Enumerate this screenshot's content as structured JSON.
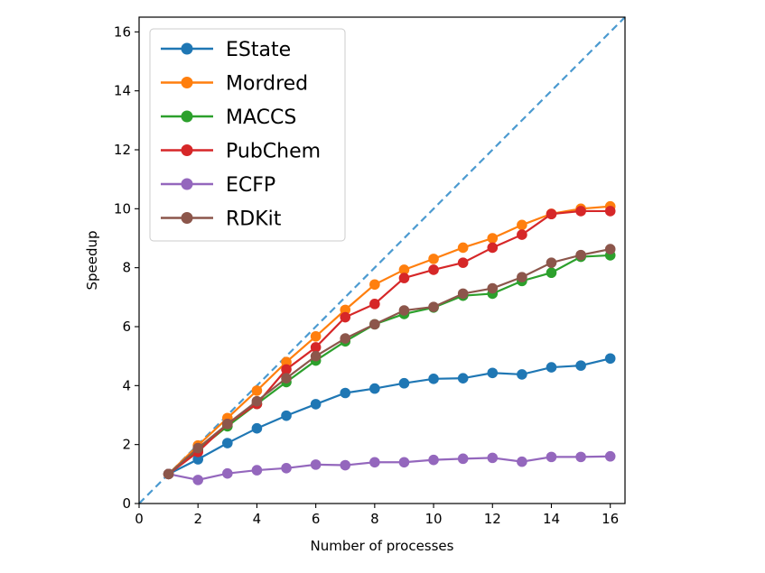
{
  "chart_data": {
    "type": "line",
    "title": "",
    "xlabel": "Number of processes",
    "ylabel": "Speedup",
    "xlim": [
      0,
      16.5
    ],
    "ylim": [
      0,
      16.5
    ],
    "xticks": [
      0,
      2,
      4,
      6,
      8,
      10,
      12,
      14,
      16
    ],
    "yticks": [
      0,
      2,
      4,
      6,
      8,
      10,
      12,
      14,
      16
    ],
    "x": [
      1,
      2,
      3,
      4,
      5,
      6,
      7,
      8,
      9,
      10,
      11,
      12,
      13,
      14,
      15,
      16
    ],
    "legend_position": "top-left",
    "reference_line": {
      "name": "ideal",
      "style": "dashed",
      "color": "#4b9ad0",
      "from": [
        0,
        0
      ],
      "to": [
        16.5,
        16.5
      ]
    },
    "series": [
      {
        "name": "EState",
        "color": "#1f77b4",
        "values": [
          1.0,
          1.5,
          2.05,
          2.55,
          2.98,
          3.37,
          3.75,
          3.9,
          4.08,
          4.23,
          4.25,
          4.43,
          4.38,
          4.62,
          4.68,
          4.92
        ]
      },
      {
        "name": "Mordred",
        "color": "#ff7f0e",
        "values": [
          1.0,
          1.97,
          2.9,
          3.83,
          4.8,
          5.67,
          6.57,
          7.43,
          7.93,
          8.3,
          8.68,
          9.0,
          9.45,
          9.83,
          10.0,
          10.08
        ]
      },
      {
        "name": "MACCS",
        "color": "#2ca02c",
        "values": [
          1.0,
          1.82,
          2.62,
          3.38,
          4.12,
          4.85,
          5.5,
          6.08,
          6.43,
          6.65,
          7.05,
          7.12,
          7.55,
          7.83,
          8.37,
          8.42
        ]
      },
      {
        "name": "PubChem",
        "color": "#d62728",
        "values": [
          1.0,
          1.75,
          2.7,
          3.38,
          4.55,
          5.3,
          6.32,
          6.77,
          7.65,
          7.93,
          8.17,
          8.68,
          9.12,
          9.82,
          9.92,
          9.92
        ]
      },
      {
        "name": "ECFP",
        "color": "#9467bd",
        "values": [
          1.0,
          0.8,
          1.02,
          1.13,
          1.2,
          1.32,
          1.3,
          1.4,
          1.4,
          1.48,
          1.52,
          1.55,
          1.42,
          1.58,
          1.58,
          1.6
        ]
      },
      {
        "name": "RDKit",
        "color": "#8c564b",
        "values": [
          1.0,
          1.88,
          2.7,
          3.47,
          4.25,
          5.0,
          5.6,
          6.08,
          6.55,
          6.67,
          7.12,
          7.3,
          7.68,
          8.17,
          8.43,
          8.63
        ]
      }
    ]
  }
}
